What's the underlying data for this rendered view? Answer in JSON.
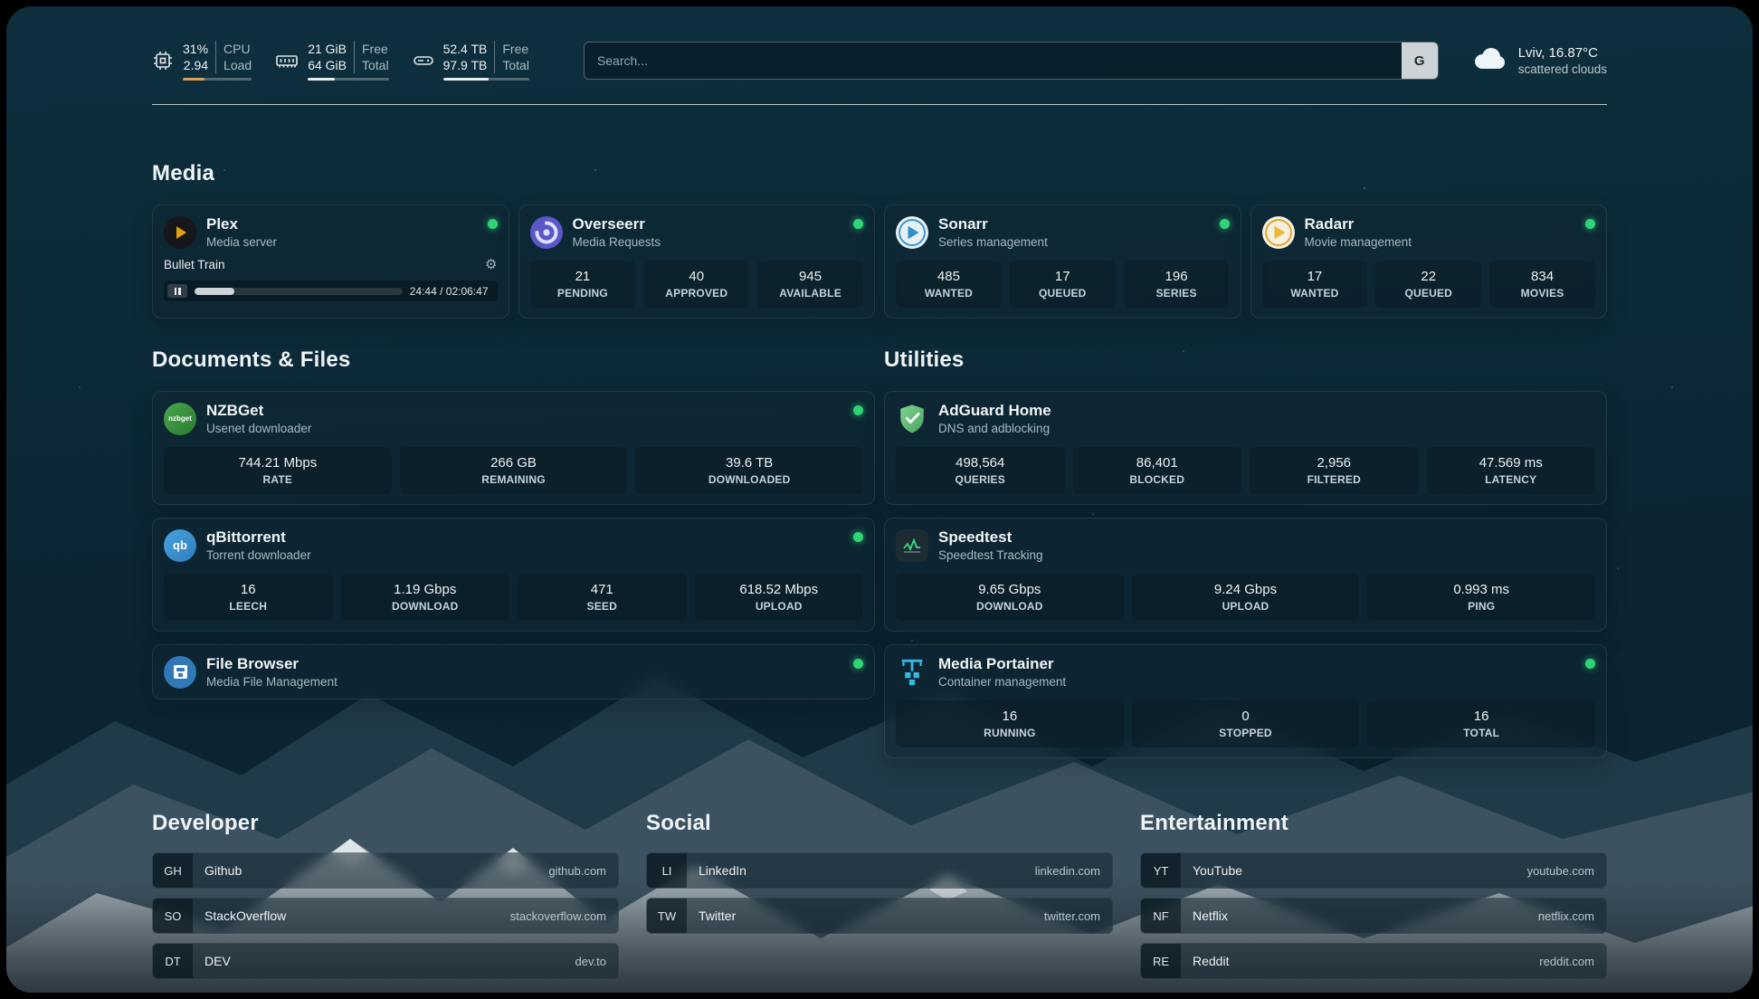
{
  "header": {
    "cpu": {
      "icon": "cpu-icon",
      "usage": "31%",
      "usage_label": "CPU",
      "load": "2.94",
      "load_label": "Load",
      "bar_pct": 31
    },
    "memory": {
      "icon": "memory-icon",
      "free": "21 GiB",
      "free_label": "Free",
      "total": "64 GiB",
      "total_label": "Total",
      "bar_pct": 33
    },
    "disk": {
      "icon": "disk-icon",
      "free": "52.4 TB",
      "free_label": "Free",
      "total": "97.9 TB",
      "total_label": "Total",
      "bar_pct": 53
    },
    "search": {
      "placeholder": "Search...",
      "button_label": "G"
    },
    "weather": {
      "icon": "cloud-icon",
      "location": "Lviv, 16.87°C",
      "condition": "scattered clouds"
    }
  },
  "colors": {
    "status_online": "#2fd573",
    "cpu_bar": "#dd9c55",
    "accent_plex": "#e5a00d"
  },
  "sections": {
    "media": {
      "title": "Media",
      "cards": [
        {
          "icon": "plex-icon",
          "name": "Plex",
          "subtitle": "Media server",
          "status": "online",
          "player": {
            "title": "Bullet Train",
            "time": "24:44 / 02:06:47",
            "progress_pct": 19
          }
        },
        {
          "icon": "overseerr-icon",
          "name": "Overseerr",
          "subtitle": "Media Requests",
          "status": "online",
          "stats": [
            {
              "value": "21",
              "label": "PENDING"
            },
            {
              "value": "40",
              "label": "APPROVED"
            },
            {
              "value": "945",
              "label": "AVAILABLE"
            }
          ]
        },
        {
          "icon": "sonarr-icon",
          "name": "Sonarr",
          "subtitle": "Series management",
          "status": "online",
          "stats": [
            {
              "value": "485",
              "label": "WANTED"
            },
            {
              "value": "17",
              "label": "QUEUED"
            },
            {
              "value": "196",
              "label": "SERIES"
            }
          ]
        },
        {
          "icon": "radarr-icon",
          "name": "Radarr",
          "subtitle": "Movie management",
          "status": "online",
          "stats": [
            {
              "value": "17",
              "label": "WANTED"
            },
            {
              "value": "22",
              "label": "QUEUED"
            },
            {
              "value": "834",
              "label": "MOVIES"
            }
          ]
        }
      ]
    },
    "documents": {
      "title": "Documents & Files",
      "cards": [
        {
          "icon": "nzbget-icon",
          "icon_text": "nzbget",
          "name": "NZBGet",
          "subtitle": "Usenet downloader",
          "status": "online",
          "stats": [
            {
              "value": "744.21 Mbps",
              "label": "RATE"
            },
            {
              "value": "266 GB",
              "label": "REMAINING"
            },
            {
              "value": "39.6 TB",
              "label": "DOWNLOADED"
            }
          ]
        },
        {
          "icon": "qbittorrent-icon",
          "icon_text": "qb",
          "name": "qBittorrent",
          "subtitle": "Torrent downloader",
          "status": "online",
          "stats": [
            {
              "value": "16",
              "label": "LEECH"
            },
            {
              "value": "1.19 Gbps",
              "label": "DOWNLOAD"
            },
            {
              "value": "471",
              "label": "SEED"
            },
            {
              "value": "618.52 Mbps",
              "label": "UPLOAD"
            }
          ]
        },
        {
          "icon": "filebrowser-icon",
          "name": "File Browser",
          "subtitle": "Media File Management",
          "status": "online"
        }
      ]
    },
    "utilities": {
      "title": "Utilities",
      "cards": [
        {
          "icon": "adguard-icon",
          "name": "AdGuard Home",
          "subtitle": "DNS and adblocking",
          "stats": [
            {
              "value": "498,564",
              "label": "QUERIES"
            },
            {
              "value": "86,401",
              "label": "BLOCKED"
            },
            {
              "value": "2,956",
              "label": "FILTERED"
            },
            {
              "value": "47.569 ms",
              "label": "LATENCY"
            }
          ]
        },
        {
          "icon": "speedtest-icon",
          "name": "Speedtest",
          "subtitle": "Speedtest Tracking",
          "stats": [
            {
              "value": "9.65 Gbps",
              "label": "DOWNLOAD"
            },
            {
              "value": "9.24 Gbps",
              "label": "UPLOAD"
            },
            {
              "value": "0.993 ms",
              "label": "PING"
            }
          ]
        },
        {
          "icon": "portainer-icon",
          "name": "Media Portainer",
          "subtitle": "Container management",
          "status": "online",
          "stats": [
            {
              "value": "16",
              "label": "RUNNING"
            },
            {
              "value": "0",
              "label": "STOPPED"
            },
            {
              "value": "16",
              "label": "TOTAL"
            }
          ]
        }
      ]
    },
    "bookmarks": [
      {
        "title": "Developer",
        "items": [
          {
            "abbr": "GH",
            "name": "Github",
            "url": "github.com"
          },
          {
            "abbr": "SO",
            "name": "StackOverflow",
            "url": "stackoverflow.com"
          },
          {
            "abbr": "DT",
            "name": "DEV",
            "url": "dev.to"
          }
        ]
      },
      {
        "title": "Social",
        "items": [
          {
            "abbr": "LI",
            "name": "LinkedIn",
            "url": "linkedin.com"
          },
          {
            "abbr": "TW",
            "name": "Twitter",
            "url": "twitter.com"
          }
        ]
      },
      {
        "title": "Entertainment",
        "items": [
          {
            "abbr": "YT",
            "name": "YouTube",
            "url": "youtube.com"
          },
          {
            "abbr": "NF",
            "name": "Netflix",
            "url": "netflix.com"
          },
          {
            "abbr": "RE",
            "name": "Reddit",
            "url": "reddit.com"
          }
        ]
      }
    ]
  }
}
